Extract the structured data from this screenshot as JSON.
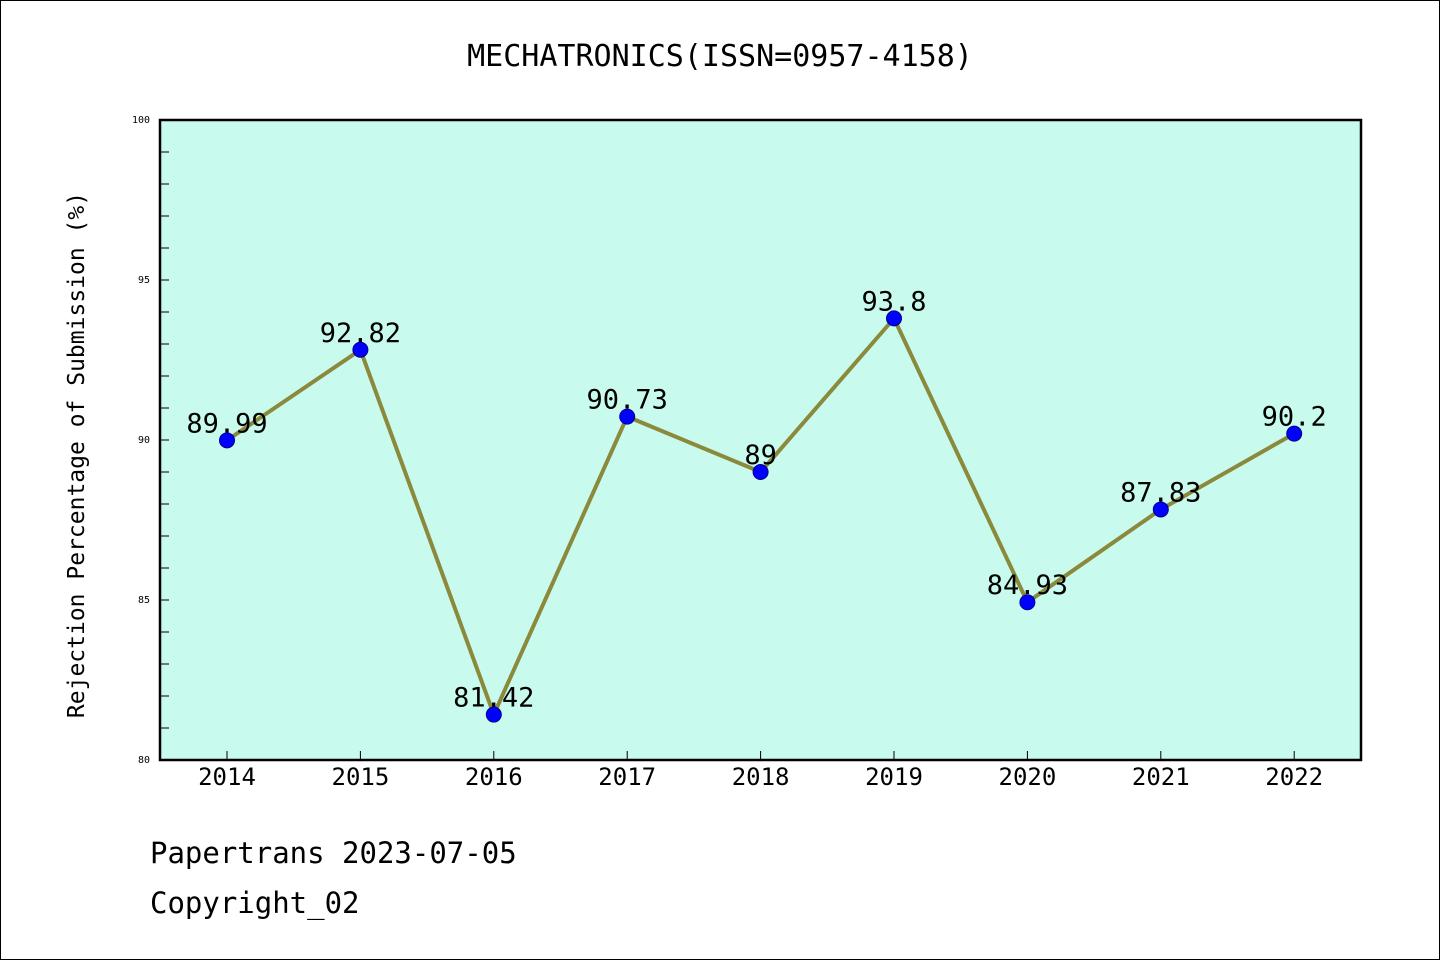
{
  "chart_data": {
    "type": "line",
    "title": "MECHATRONICS(ISSN=0957-4158)",
    "xlabel": "",
    "ylabel": "Rejection Percentage of Submission (%)",
    "categories": [
      "2014",
      "2015",
      "2016",
      "2017",
      "2018",
      "2019",
      "2020",
      "2021",
      "2022"
    ],
    "series": [
      {
        "values": [
          89.99,
          92.82,
          81.42,
          90.73,
          89,
          93.8,
          84.93,
          87.83,
          90.2
        ]
      }
    ],
    "data_labels": [
      "89.99",
      "92.82",
      "81.42",
      "90.73",
      "89",
      "93.8",
      "84.93",
      "87.83",
      "90.2"
    ],
    "ylim": [
      80,
      100
    ],
    "y_ticks": [
      "80",
      "85",
      "90",
      "95",
      "100"
    ],
    "grid": false,
    "colors": {
      "plot_background": "#c8fbee",
      "line": "#8b8a3c",
      "marker": "#0000ff"
    }
  },
  "footer": {
    "line1": "Papertrans 2023-07-05",
    "line2": "Copyright_02"
  }
}
